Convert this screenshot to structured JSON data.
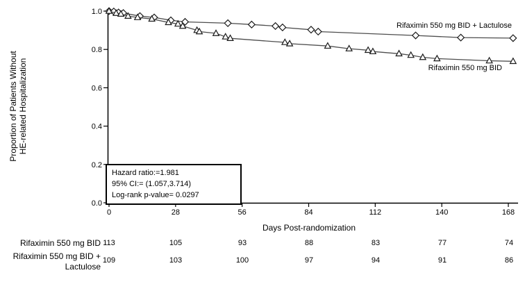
{
  "chart_data": {
    "type": "line",
    "title": "",
    "xlabel": "Days Post-randomization",
    "ylabel_lines": [
      "Proportion of Patients Without",
      "HE-related Hospitalization"
    ],
    "xlim": [
      0,
      168
    ],
    "ylim": [
      0.0,
      1.0
    ],
    "xticks": [
      0,
      28,
      56,
      84,
      112,
      140,
      168
    ],
    "yticks": [
      0.0,
      0.2,
      0.4,
      0.6,
      0.8,
      1.0
    ],
    "grid": false,
    "legend_position": "inline-labels-near-curves",
    "series": [
      {
        "name": "Rifaximin 550 mg BID + Lactulose",
        "marker": "diamond",
        "color": "#4d4d4d",
        "points": [
          [
            0,
            1.0
          ],
          [
            2,
            0.998
          ],
          [
            4,
            0.993
          ],
          [
            6,
            0.99
          ],
          [
            13,
            0.974
          ],
          [
            19,
            0.967
          ],
          [
            26,
            0.952
          ],
          [
            32,
            0.944
          ],
          [
            50,
            0.937
          ],
          [
            60,
            0.93
          ],
          [
            70,
            0.922
          ],
          [
            73,
            0.915
          ],
          [
            85,
            0.903
          ],
          [
            88,
            0.893
          ],
          [
            129,
            0.873
          ],
          [
            148,
            0.862
          ],
          [
            170,
            0.859
          ]
        ]
      },
      {
        "name": "Rifaximin 550 mg BID",
        "marker": "triangle",
        "color": "#4d4d4d",
        "points": [
          [
            0,
            1.0
          ],
          [
            3,
            0.989
          ],
          [
            5,
            0.985
          ],
          [
            8,
            0.974
          ],
          [
            12,
            0.967
          ],
          [
            18,
            0.959
          ],
          [
            25,
            0.941
          ],
          [
            29,
            0.933
          ],
          [
            31,
            0.922
          ],
          [
            37,
            0.9
          ],
          [
            38,
            0.893
          ],
          [
            45,
            0.884
          ],
          [
            49,
            0.866
          ],
          [
            51,
            0.858
          ],
          [
            74,
            0.837
          ],
          [
            76,
            0.83
          ],
          [
            92,
            0.818
          ],
          [
            101,
            0.804
          ],
          [
            109,
            0.796
          ],
          [
            111,
            0.789
          ],
          [
            122,
            0.778
          ],
          [
            127,
            0.77
          ],
          [
            132,
            0.759
          ],
          [
            138,
            0.752
          ],
          [
            160,
            0.741
          ],
          [
            170,
            0.738
          ]
        ]
      }
    ],
    "annotation_box": {
      "lines": [
        "Hazard ratio:=1.981",
        "95% CI:= (1.057,3.714)",
        "Log-rank p-value= 0.0297"
      ]
    }
  },
  "risk_table": {
    "rows": [
      {
        "label": "Rifaximin 550 mg BID",
        "values": [
          "113",
          "105",
          "93",
          "88",
          "83",
          "77",
          "74"
        ]
      },
      {
        "label": "Rifaximin 550 mg BID + Lactulose",
        "values": [
          "109",
          "103",
          "100",
          "97",
          "94",
          "91",
          "86"
        ]
      }
    ]
  },
  "colors": {
    "background": "#ffffff",
    "line": "#4d4d4d",
    "marker_stroke": "#1a1a1a",
    "marker_fill": "#ffffff",
    "axis": "#000000",
    "text": "#000000"
  }
}
